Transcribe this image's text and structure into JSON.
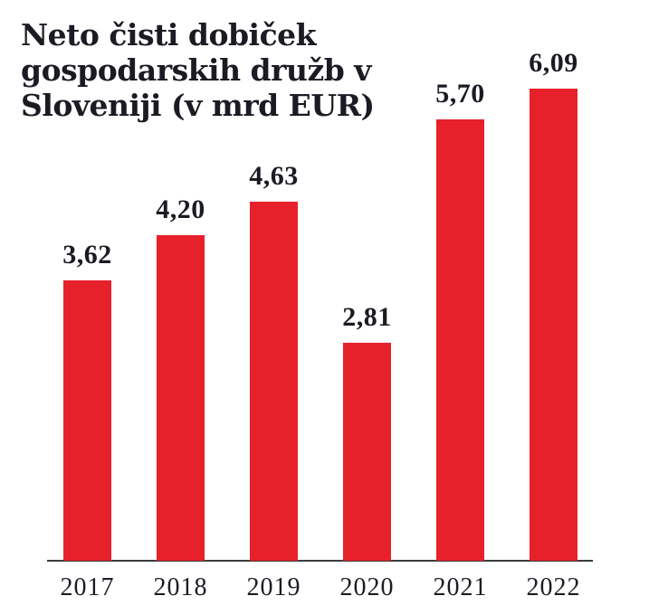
{
  "chart_data": {
    "type": "bar",
    "title": "Neto čisti dobiček gospodarskih družb v Sloveniji (v mrd EUR)",
    "title_lines": [
      "Neto čisti dobiček",
      "gospodarskih družb v",
      "Sloveniji (v mrd EUR)"
    ],
    "categories": [
      "2017",
      "2018",
      "2019",
      "2020",
      "2021",
      "2022"
    ],
    "values": [
      3.62,
      4.2,
      4.63,
      2.81,
      5.7,
      6.09
    ],
    "value_labels": [
      "3,62",
      "4,20",
      "4,63",
      "2,81",
      "5,70",
      "6,09"
    ],
    "xlabel": "",
    "ylabel": "",
    "unit": "mrd EUR",
    "ylim": [
      0,
      6.5
    ],
    "grid": false,
    "legend": false,
    "colors": {
      "bar": "#e6212b",
      "text": "#1b1b24",
      "axis": "#3c3c3c",
      "background": "#ffffff"
    }
  }
}
